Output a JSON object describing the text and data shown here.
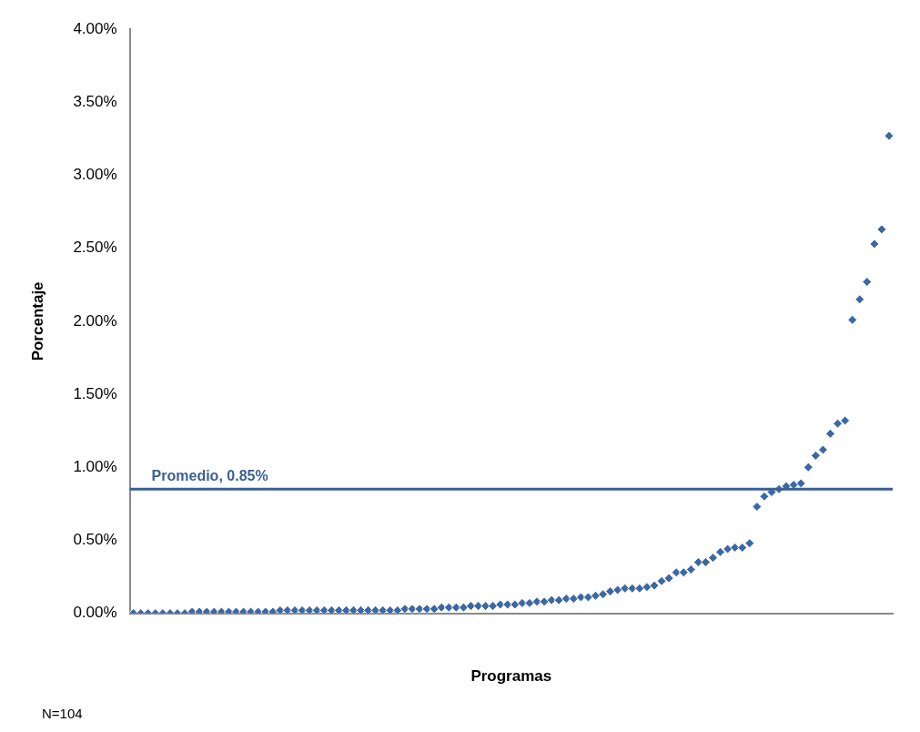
{
  "chart_data": {
    "type": "scatter",
    "xlabel": "Programas",
    "ylabel": "Porcentaje",
    "categories": [
      null,
      null,
      null,
      null,
      null,
      null,
      null,
      null,
      null,
      null,
      null,
      null,
      null,
      null,
      null,
      null,
      null,
      null,
      null,
      null,
      null,
      null,
      null,
      null,
      null,
      null,
      null,
      null,
      null,
      null,
      null,
      null,
      null,
      null,
      null,
      null,
      null,
      null,
      null,
      null,
      null,
      null,
      null,
      null,
      null,
      null,
      null,
      null,
      null,
      null,
      null,
      null,
      null,
      null,
      null,
      null,
      null,
      null,
      null,
      null,
      null,
      null,
      null,
      null,
      null,
      null,
      null,
      null,
      null,
      null,
      null,
      null,
      null,
      null,
      null,
      null,
      null,
      null,
      null,
      null,
      null,
      null,
      null,
      null,
      null,
      null,
      null,
      null,
      null,
      null,
      null,
      null,
      null,
      null,
      null,
      null,
      null,
      null,
      null,
      null,
      null,
      null,
      null,
      null
    ],
    "values": [
      0,
      0,
      0,
      0,
      0,
      0,
      0,
      0,
      0.01,
      0.01,
      0.01,
      0.01,
      0.01,
      0.01,
      0.01,
      0.01,
      0.01,
      0.01,
      0.01,
      0.01,
      0.02,
      0.02,
      0.02,
      0.02,
      0.02,
      0.02,
      0.02,
      0.02,
      0.02,
      0.02,
      0.02,
      0.02,
      0.02,
      0.02,
      0.02,
      0.02,
      0.02,
      0.03,
      0.03,
      0.03,
      0.03,
      0.03,
      0.04,
      0.04,
      0.04,
      0.04,
      0.05,
      0.05,
      0.05,
      0.05,
      0.06,
      0.06,
      0.06,
      0.07,
      0.07,
      0.08,
      0.08,
      0.09,
      0.09,
      0.1,
      0.1,
      0.11,
      0.11,
      0.12,
      0.13,
      0.15,
      0.16,
      0.17,
      0.17,
      0.17,
      0.18,
      0.19,
      0.22,
      0.24,
      0.28,
      0.28,
      0.3,
      0.35,
      0.35,
      0.38,
      0.42,
      0.44,
      0.45,
      0.45,
      0.48,
      0.73,
      0.8,
      0.83,
      0.85,
      0.87,
      0.88,
      0.89,
      1.0,
      1.08,
      1.12,
      1.23,
      1.3,
      1.32,
      2.01,
      2.15,
      2.27,
      2.53,
      2.63,
      3.27
    ],
    "color": "#3c68a3",
    "marker": "diamond",
    "ylim": [
      0,
      4
    ],
    "yticks": [
      {
        "value": 0,
        "label": "0.00%"
      },
      {
        "value": 0.5,
        "label": "0.50%"
      },
      {
        "value": 1,
        "label": "1.00%"
      },
      {
        "value": 1.5,
        "label": "1.50%"
      },
      {
        "value": 2,
        "label": "2.00%"
      },
      {
        "value": 2.5,
        "label": "2.50%"
      },
      {
        "value": 3,
        "label": "3.00%"
      },
      {
        "value": 3.5,
        "label": "3.50%"
      },
      {
        "value": 4,
        "label": "4.00%"
      }
    ],
    "tick_labels": "y",
    "grid": false,
    "legend": false,
    "ref_lines": [
      {
        "axis": "y",
        "value": 0.85,
        "label": "Promedio, 0.85%",
        "color": "#3a5f94",
        "line_style": "solid"
      }
    ],
    "annotations": [
      "N=104"
    ]
  }
}
